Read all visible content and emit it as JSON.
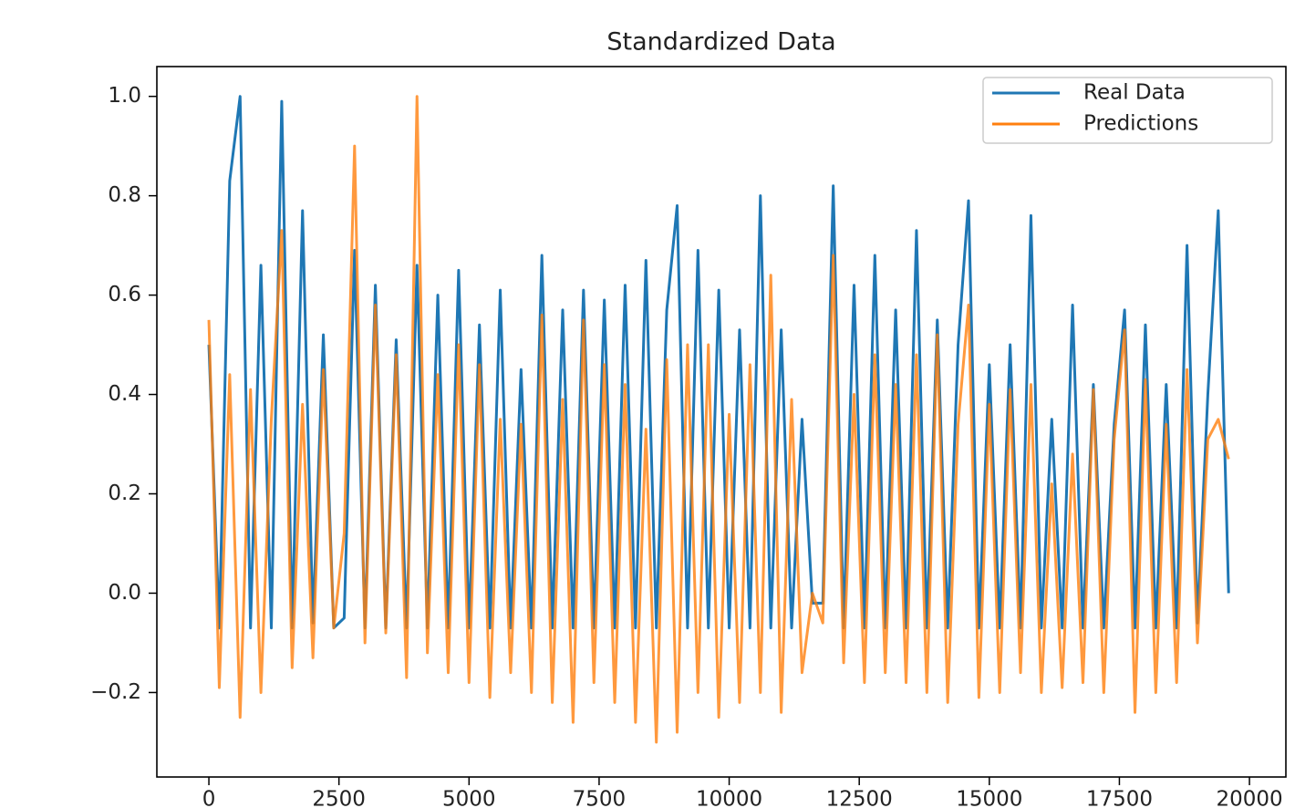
{
  "chart_data": {
    "type": "line",
    "title": "Standardized Data",
    "x": [
      0,
      200,
      400,
      600,
      800,
      1000,
      1200,
      1400,
      1600,
      1800,
      2000,
      2200,
      2400,
      2600,
      2800,
      3000,
      3200,
      3400,
      3600,
      3800,
      4000,
      4200,
      4400,
      4600,
      4800,
      5000,
      5200,
      5400,
      5600,
      5800,
      6000,
      6200,
      6400,
      6600,
      6800,
      7000,
      7200,
      7400,
      7600,
      7800,
      8000,
      8200,
      8400,
      8600,
      8800,
      9000,
      9200,
      9400,
      9600,
      9800,
      10000,
      10200,
      10400,
      10600,
      10800,
      11000,
      11200,
      11400,
      11600,
      11800,
      12000,
      12200,
      12400,
      12600,
      12800,
      13000,
      13200,
      13400,
      13600,
      13800,
      14000,
      14200,
      14400,
      14600,
      14800,
      15000,
      15200,
      15400,
      15600,
      15800,
      16000,
      16200,
      16400,
      16600,
      16800,
      17000,
      17200,
      17400,
      17600,
      17800,
      18000,
      18200,
      18400,
      18600,
      18800,
      19000,
      19200,
      19400,
      19600
    ],
    "series": [
      {
        "name": "Real Data",
        "color": "#1f77b4",
        "values": [
          0.5,
          -0.07,
          0.83,
          1.0,
          -0.07,
          0.66,
          -0.07,
          0.99,
          -0.07,
          0.77,
          -0.06,
          0.52,
          -0.07,
          -0.05,
          0.69,
          -0.07,
          0.62,
          -0.07,
          0.51,
          -0.07,
          0.66,
          -0.07,
          0.6,
          -0.07,
          0.65,
          -0.07,
          0.54,
          -0.07,
          0.61,
          -0.07,
          0.45,
          -0.07,
          0.68,
          -0.07,
          0.57,
          -0.07,
          0.61,
          -0.07,
          0.59,
          -0.07,
          0.62,
          -0.07,
          0.67,
          -0.07,
          0.57,
          0.78,
          -0.07,
          0.69,
          -0.07,
          0.61,
          -0.07,
          0.53,
          -0.07,
          0.8,
          -0.07,
          0.53,
          -0.07,
          0.35,
          -0.02,
          -0.02,
          0.82,
          -0.07,
          0.62,
          -0.07,
          0.68,
          -0.07,
          0.57,
          -0.07,
          0.73,
          -0.07,
          0.55,
          -0.07,
          0.5,
          0.79,
          -0.07,
          0.46,
          -0.07,
          0.5,
          -0.07,
          0.76,
          -0.07,
          0.35,
          -0.07,
          0.58,
          -0.07,
          0.42,
          -0.07,
          0.34,
          0.57,
          -0.07,
          0.54,
          -0.07,
          0.42,
          -0.07,
          0.7,
          -0.06,
          0.4,
          0.77,
          0.0
        ]
      },
      {
        "name": "Predictions",
        "color": "#ff7f0e",
        "values": [
          0.55,
          -0.19,
          0.44,
          -0.25,
          0.41,
          -0.2,
          0.35,
          0.73,
          -0.15,
          0.38,
          -0.13,
          0.45,
          -0.07,
          0.12,
          0.9,
          -0.1,
          0.58,
          -0.08,
          0.48,
          -0.17,
          1.0,
          -0.12,
          0.44,
          -0.16,
          0.5,
          -0.18,
          0.46,
          -0.21,
          0.35,
          -0.16,
          0.34,
          -0.2,
          0.56,
          -0.22,
          0.39,
          -0.26,
          0.55,
          -0.18,
          0.46,
          -0.22,
          0.42,
          -0.26,
          0.33,
          -0.3,
          0.47,
          -0.28,
          0.5,
          -0.2,
          0.5,
          -0.25,
          0.36,
          -0.22,
          0.46,
          -0.2,
          0.64,
          -0.24,
          0.39,
          -0.16,
          0.0,
          -0.06,
          0.68,
          -0.14,
          0.4,
          -0.18,
          0.48,
          -0.16,
          0.42,
          -0.18,
          0.48,
          -0.2,
          0.52,
          -0.22,
          0.34,
          0.58,
          -0.21,
          0.38,
          -0.2,
          0.41,
          -0.16,
          0.42,
          -0.2,
          0.22,
          -0.19,
          0.28,
          -0.18,
          0.41,
          -0.2,
          0.31,
          0.53,
          -0.24,
          0.43,
          -0.2,
          0.34,
          -0.18,
          0.45,
          -0.1,
          0.31,
          0.35,
          0.27
        ]
      }
    ],
    "xlim": [
      -1000,
      20700
    ],
    "ylim": [
      -0.37,
      1.06
    ],
    "xticks": [
      0,
      2500,
      5000,
      7500,
      10000,
      12500,
      15000,
      17500,
      20000
    ],
    "yticks": [
      {
        "value": -0.2,
        "label": "−0.2"
      },
      {
        "value": 0,
        "label": "0.0"
      },
      {
        "value": 0.2,
        "label": "0.2"
      },
      {
        "value": 0.4,
        "label": "0.4"
      },
      {
        "value": 0.6,
        "label": "0.6"
      },
      {
        "value": 0.8,
        "label": "0.8"
      },
      {
        "value": 1.0,
        "label": "1.0"
      }
    ],
    "grid": false,
    "legend": "upper right"
  }
}
